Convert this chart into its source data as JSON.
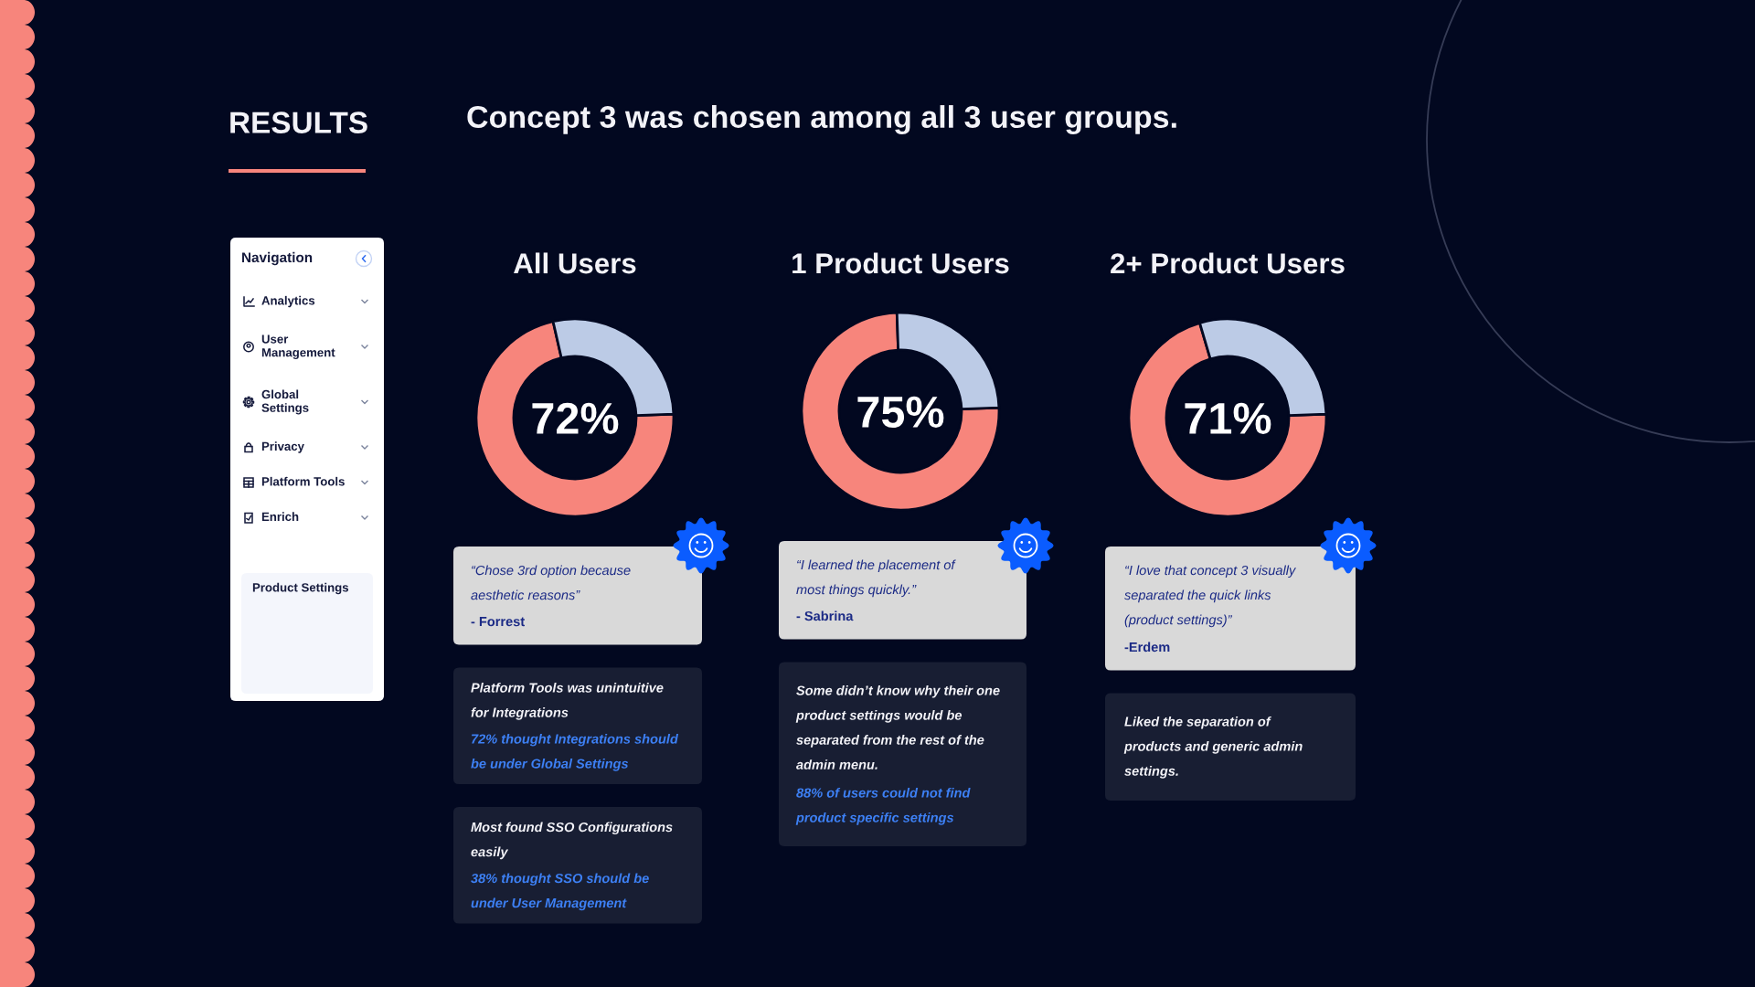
{
  "chart_data": [
    {
      "type": "other",
      "title": "RESULTS",
      "subtitle": "Concept 3 was chosen among all 3 user groups."
    },
    {
      "type": "other",
      "title": "Navigation",
      "annotations": [
        "Analytics",
        "User Management",
        "Global Settings",
        "Privacy",
        "Platform Tools",
        "Enrich",
        "Product Settings"
      ]
    },
    {
      "type": "donut",
      "title": "All Users",
      "categories": [
        null,
        null
      ],
      "values": [
        72,
        28
      ],
      "colors": [
        "#f7857c",
        "#bccbe6"
      ],
      "value_labels": [
        "72%",
        null
      ],
      "annotations": [
        "“Chose 3rd option because aesthetic reasons”",
        "- Forrest",
        "Platform Tools was unintuitive for Integrations",
        "72% thought Integrations should be under Global Settings",
        "Most found SSO Configurations easily",
        "38% thought SSO should be under User Management"
      ]
    },
    {
      "type": "donut",
      "title": "1 Product Users",
      "categories": [
        null,
        null
      ],
      "values": [
        75,
        25
      ],
      "colors": [
        "#f7857c",
        "#bccbe6"
      ],
      "value_labels": [
        "75%",
        null
      ],
      "annotations": [
        "“I learned the placement of most things quickly.”",
        "- Sabrina",
        "Some didn’t know why their one product settings would be separated from the rest of the admin menu.",
        "88% of users could not find product specific settings"
      ]
    },
    {
      "type": "donut",
      "title": "2+ Product Users",
      "categories": [
        null,
        null
      ],
      "values": [
        71,
        29
      ],
      "colors": [
        "#f7857c",
        "#bccbe6"
      ],
      "value_labels": [
        "71%",
        null
      ],
      "annotations": [
        "“I love that concept 3 visually separated the quick links (product settings)”",
        "-Erdem",
        "Liked the separation of products and generic admin settings."
      ]
    }
  ]
}
